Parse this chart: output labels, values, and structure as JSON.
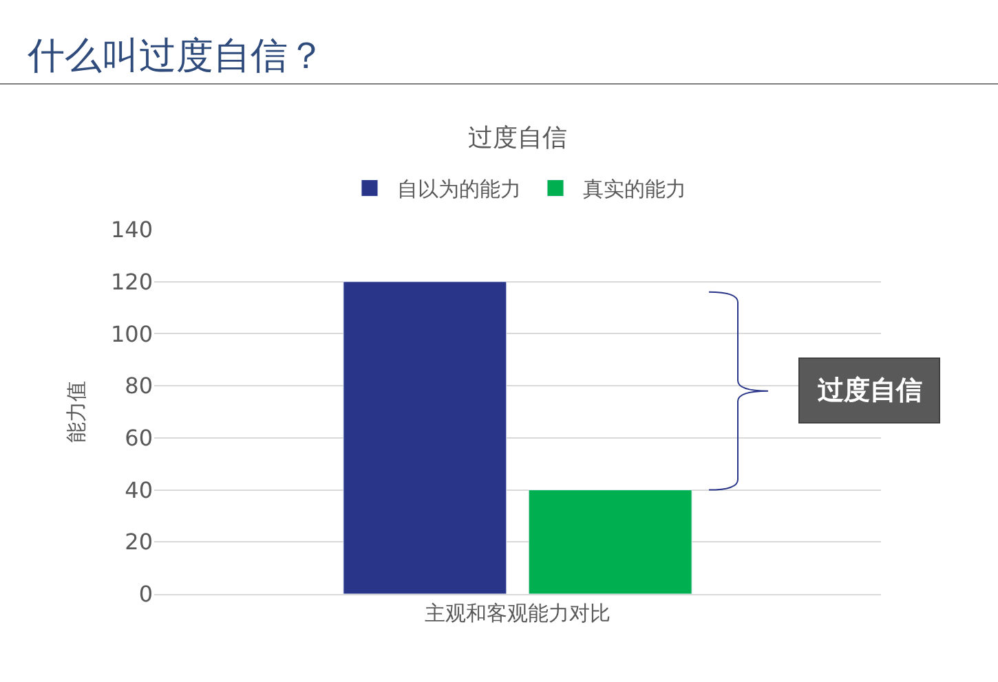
{
  "chart_data": {
    "type": "bar",
    "title": "什么叫过度自信？",
    "subtitle": "过度自信",
    "ylabel": "能力值",
    "categories": [
      "主观和客观能力对比"
    ],
    "series": [
      {
        "name": "自以为的能力",
        "color": "#283588",
        "values": [
          120
        ]
      },
      {
        "name": "真实的能力",
        "color": "#00b050",
        "values": [
          40
        ]
      }
    ],
    "ylim": [
      0,
      140
    ],
    "yticks": [
      0,
      20,
      40,
      60,
      80,
      100,
      120,
      140
    ],
    "grid": "y",
    "legend": "top",
    "annotations": [
      "过度自信"
    ]
  }
}
